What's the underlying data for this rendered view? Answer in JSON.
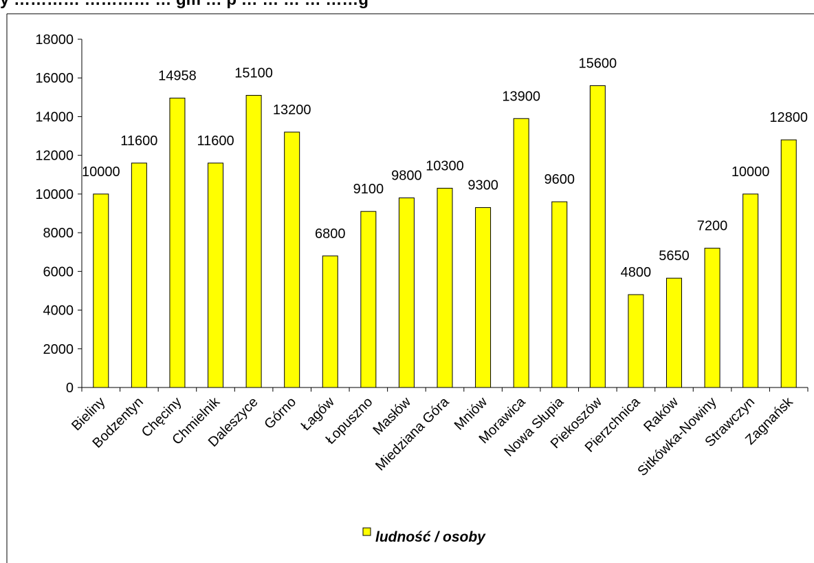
{
  "page": {
    "title": "y ………… ………… … gm … p … … … … ……g"
  },
  "chart_data": {
    "type": "bar",
    "categories": [
      "Bieliny",
      "Bodzentyn",
      "Chęciny",
      "Chmielnik",
      "Daleszyce",
      "Górno",
      "Łagów",
      "Łopuszno",
      "Masłów",
      "Miedziana Góra",
      "Mniów",
      "Morawica",
      "Nowa Słupia",
      "Piekoszów",
      "Pierzchnica",
      "Raków",
      "Sitkówka-Nowiny",
      "Strawczyn",
      "Zagnańsk"
    ],
    "series": [
      {
        "name": "ludność / osoby",
        "values": [
          10000,
          11600,
          14958,
          11600,
          15100,
          13200,
          6800,
          9100,
          9800,
          10300,
          9300,
          13900,
          9600,
          15600,
          4800,
          5650,
          7200,
          10000,
          12800
        ],
        "data_labels": [
          "10000",
          "11600",
          "14958",
          "11600",
          "15100",
          "13200",
          "6800",
          "9100",
          "9800",
          "10300",
          "9300",
          "13900",
          "9600",
          "15600",
          "4800",
          "5650",
          "7200",
          "10000",
          "12800"
        ]
      }
    ],
    "y_ticks": [
      "0",
      "2000",
      "4000",
      "6000",
      "8000",
      "10000",
      "12000",
      "14000",
      "16000",
      "18000"
    ],
    "ylim": [
      0,
      18000
    ],
    "grid": false,
    "legend_position": "bottom",
    "colors": {
      "bar_fill": "#FFFF00",
      "bar_stroke": "#000000",
      "axis": "#000000",
      "frame": "#000000"
    }
  }
}
